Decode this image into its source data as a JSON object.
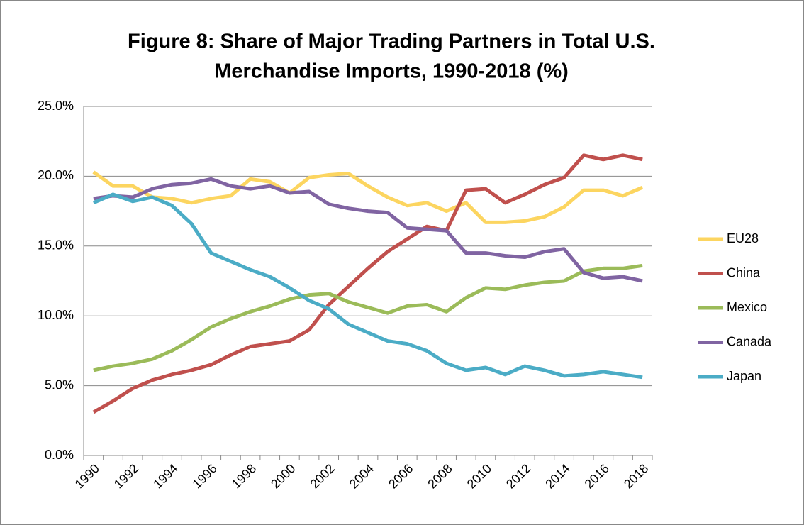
{
  "chart_data": {
    "type": "line",
    "title": [
      "Figure 8: Share of Major Trading Partners in Total U.S.",
      "Merchandise Imports, 1990-2018 (%)"
    ],
    "categories": [
      "1990",
      null,
      "1992",
      null,
      "1994",
      null,
      "1996",
      null,
      "1998",
      null,
      "2000",
      null,
      "2002",
      null,
      "2004",
      null,
      "2006",
      null,
      "2008",
      null,
      "2010",
      null,
      "2012",
      null,
      "2014",
      null,
      "2016",
      null,
      "2018"
    ],
    "series": [
      {
        "name": "EU28",
        "color": "#fcd560",
        "values": [
          20.3,
          19.3,
          19.3,
          18.5,
          18.4,
          18.1,
          18.4,
          18.6,
          19.8,
          19.6,
          18.8,
          19.9,
          20.1,
          20.2,
          19.3,
          18.5,
          17.9,
          18.1,
          17.5,
          18.1,
          16.7,
          16.7,
          16.8,
          17.1,
          17.8,
          19.0,
          19.0,
          18.6,
          19.2
        ]
      },
      {
        "name": "China",
        "color": "#c0504d",
        "values": [
          3.1,
          3.9,
          4.8,
          5.4,
          5.8,
          6.1,
          6.5,
          7.2,
          7.8,
          8.0,
          8.2,
          9.0,
          10.8,
          12.1,
          13.4,
          14.6,
          15.5,
          16.4,
          16.1,
          19.0,
          19.1,
          18.1,
          18.7,
          19.4,
          19.9,
          21.5,
          21.2,
          21.5,
          21.2
        ]
      },
      {
        "name": "Mexico",
        "color": "#9bbb59",
        "values": [
          6.1,
          6.4,
          6.6,
          6.9,
          7.5,
          8.3,
          9.2,
          9.8,
          10.3,
          10.7,
          11.2,
          11.5,
          11.6,
          11.0,
          10.6,
          10.2,
          10.7,
          10.8,
          10.3,
          11.3,
          12.0,
          11.9,
          12.2,
          12.4,
          12.5,
          13.2,
          13.4,
          13.4,
          13.6
        ]
      },
      {
        "name": "Canada",
        "color": "#8064a2",
        "values": [
          18.4,
          18.6,
          18.5,
          19.1,
          19.4,
          19.5,
          19.8,
          19.3,
          19.1,
          19.3,
          18.8,
          18.9,
          18.0,
          17.7,
          17.5,
          17.4,
          16.3,
          16.2,
          16.1,
          14.5,
          14.5,
          14.3,
          14.2,
          14.6,
          14.8,
          13.1,
          12.7,
          12.8,
          12.5
        ]
      },
      {
        "name": "Japan",
        "color": "#4bacc6",
        "values": [
          18.1,
          18.7,
          18.2,
          18.5,
          17.9,
          16.6,
          14.5,
          13.9,
          13.3,
          12.8,
          12.0,
          11.1,
          10.5,
          9.4,
          8.8,
          8.2,
          8.0,
          7.5,
          6.6,
          6.1,
          6.3,
          5.8,
          6.4,
          6.1,
          5.7,
          5.8,
          6.0,
          5.8,
          5.6
        ]
      }
    ],
    "ylim": [
      0,
      25
    ],
    "yticks": [
      {
        "value": 0,
        "label": "0.0%"
      },
      {
        "value": 5,
        "label": "5.0%"
      },
      {
        "value": 10,
        "label": "10.0%"
      },
      {
        "value": 15,
        "label": "15.0%"
      },
      {
        "value": 20,
        "label": "20.0%"
      },
      {
        "value": 25,
        "label": "25.0%"
      }
    ],
    "grid": true,
    "legend": "right"
  }
}
